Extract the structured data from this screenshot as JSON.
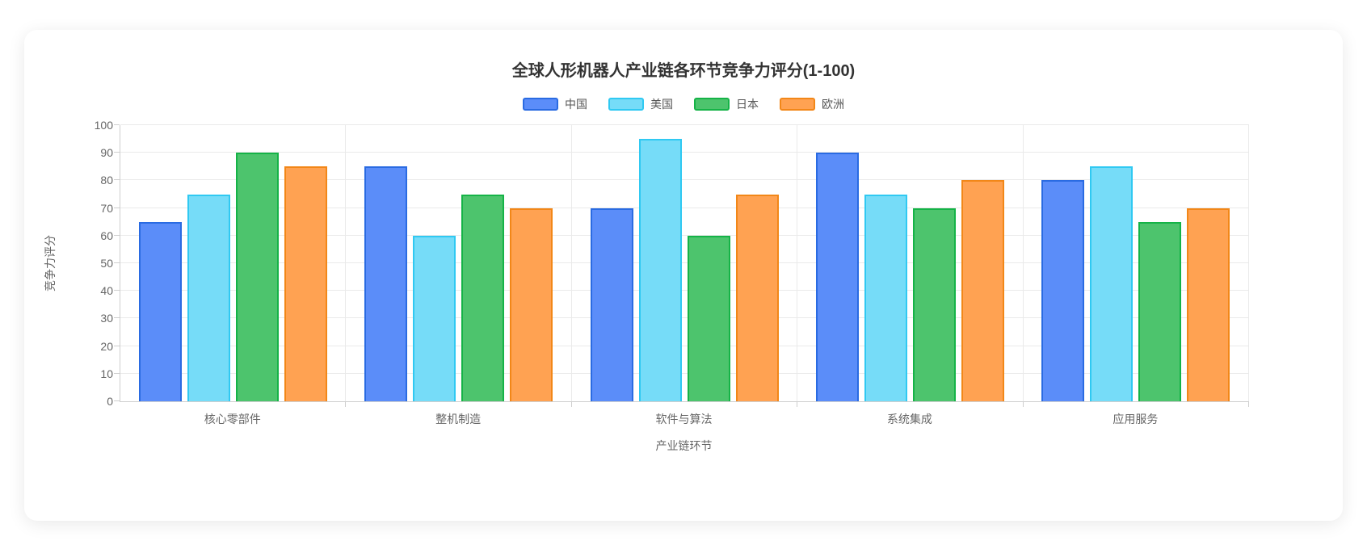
{
  "chart_data": {
    "type": "bar",
    "title": "全球人形机器人产业链各环节竞争力评分(1-100)",
    "xlabel": "产业链环节",
    "ylabel": "竞争力评分",
    "ylim": [
      0,
      100
    ],
    "yticks": [
      0,
      10,
      20,
      30,
      40,
      50,
      60,
      70,
      80,
      90,
      100
    ],
    "grid": true,
    "legend_position": "top",
    "categories": [
      "核心零部件",
      "整机制造",
      "软件与算法",
      "系统集成",
      "应用服务"
    ],
    "series": [
      {
        "name": "中国",
        "values": [
          65,
          85,
          70,
          90,
          80
        ],
        "fill": "#5B8DF9",
        "border": "#2A6BE2"
      },
      {
        "name": "美国",
        "values": [
          75,
          60,
          95,
          75,
          85
        ],
        "fill": "#76DCF8",
        "border": "#30C9F2"
      },
      {
        "name": "日本",
        "values": [
          90,
          75,
          60,
          70,
          65
        ],
        "fill": "#4DC46D",
        "border": "#15B347"
      },
      {
        "name": "欧洲",
        "values": [
          85,
          70,
          75,
          80,
          70
        ],
        "fill": "#FFA252",
        "border": "#F28718"
      }
    ],
    "colors": {
      "grid": "#eaeaea",
      "axis_line": "#cfcfcf",
      "title_text": "#333333",
      "tick_text": "#666666"
    }
  }
}
